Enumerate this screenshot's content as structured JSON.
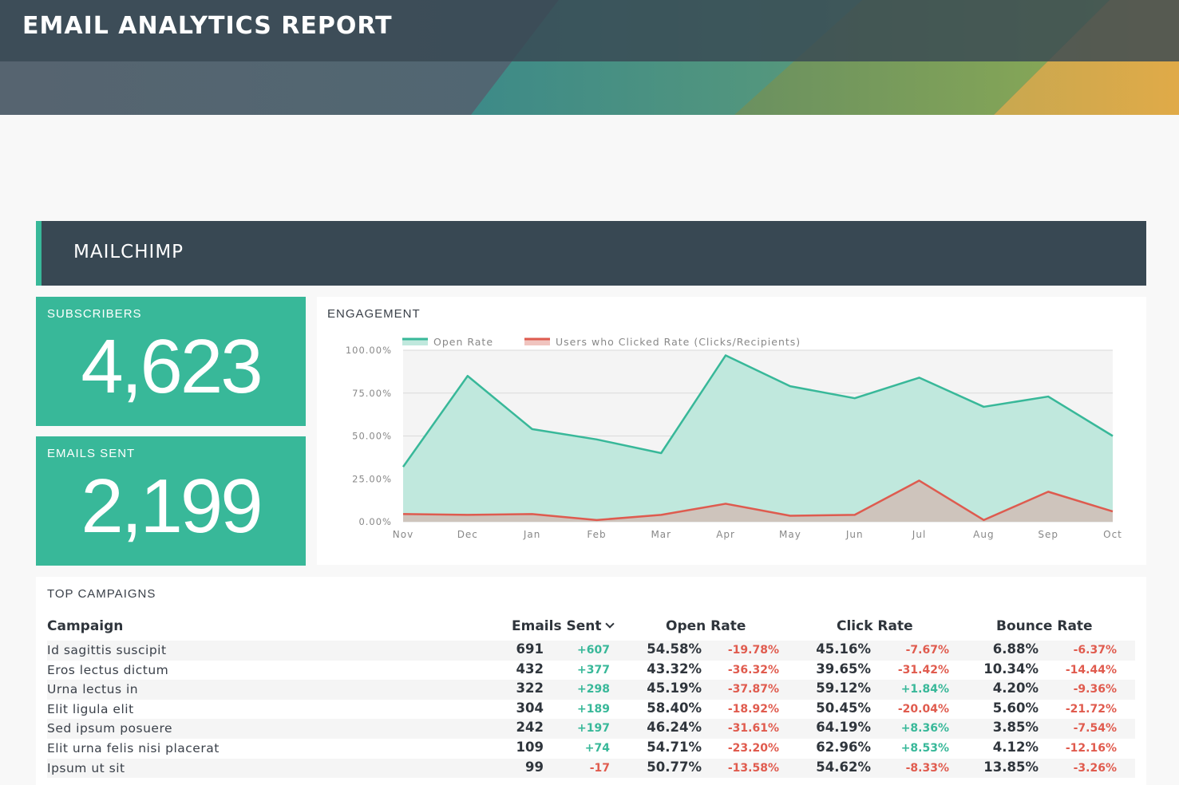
{
  "report": {
    "title": "EMAIL ANALYTICS REPORT"
  },
  "section": {
    "title": "MAILCHIMP"
  },
  "kpis": {
    "subscribers": {
      "label": "SUBSCRIBERS",
      "value": "4,623"
    },
    "emails_sent": {
      "label": "EMAILS SENT",
      "value": "2,199"
    }
  },
  "engagement": {
    "label": "ENGAGEMENT",
    "legend": {
      "open_rate": "Open Rate",
      "clicked_rate": "Users who Clicked Rate (Clicks/Recipients)"
    }
  },
  "chart_data": {
    "type": "area",
    "title": "ENGAGEMENT",
    "x": [
      "Nov",
      "Dec",
      "Jan",
      "Feb",
      "Mar",
      "Apr",
      "May",
      "Jun",
      "Jul",
      "Aug",
      "Sep",
      "Oct"
    ],
    "y_ticks": [
      "0.00%",
      "25.00%",
      "50.00%",
      "75.00%",
      "100.00%"
    ],
    "ylim": [
      0,
      100
    ],
    "grid": true,
    "legend_position": "top-left",
    "series": [
      {
        "name": "Open Rate",
        "color": "#38b899",
        "fill": "#c0e8dd",
        "values": [
          32,
          85,
          54,
          48,
          40,
          97,
          79,
          72,
          84,
          67,
          73,
          50
        ]
      },
      {
        "name": "Users who Clicked Rate (Clicks/Recipients)",
        "color": "#de5b4f",
        "fill": "#cfc0b8",
        "values": [
          4.5,
          4,
          4.5,
          1,
          4,
          10.5,
          3.5,
          4,
          24,
          1,
          17.5,
          6
        ]
      }
    ]
  },
  "campaigns": {
    "label": "TOP CAMPAIGNS",
    "headers": {
      "campaign": "Campaign",
      "emails_sent": "Emails Sent",
      "open_rate": "Open Rate",
      "click_rate": "Click Rate",
      "bounce_rate": "Bounce Rate"
    },
    "rows": [
      {
        "name": "Id sagittis suscipit",
        "sent": "691",
        "sent_delta": "+607",
        "open": "54.58%",
        "open_delta": "-19.78%",
        "click": "45.16%",
        "click_delta": "-7.67%",
        "bounce": "6.88%",
        "bounce_delta": "-6.37%"
      },
      {
        "name": "Eros lectus dictum",
        "sent": "432",
        "sent_delta": "+377",
        "open": "43.32%",
        "open_delta": "-36.32%",
        "click": "39.65%",
        "click_delta": "-31.42%",
        "bounce": "10.34%",
        "bounce_delta": "-14.44%"
      },
      {
        "name": "Urna lectus in",
        "sent": "322",
        "sent_delta": "+298",
        "open": "45.19%",
        "open_delta": "-37.87%",
        "click": "59.12%",
        "click_delta": "+1.84%",
        "bounce": "4.20%",
        "bounce_delta": "-9.36%"
      },
      {
        "name": "Elit ligula elit",
        "sent": "304",
        "sent_delta": "+189",
        "open": "58.40%",
        "open_delta": "-18.92%",
        "click": "50.45%",
        "click_delta": "-20.04%",
        "bounce": "5.60%",
        "bounce_delta": "-21.72%"
      },
      {
        "name": "Sed ipsum posuere",
        "sent": "242",
        "sent_delta": "+197",
        "open": "46.24%",
        "open_delta": "-31.61%",
        "click": "64.19%",
        "click_delta": "+8.36%",
        "bounce": "3.85%",
        "bounce_delta": "-7.54%"
      },
      {
        "name": "Elit urna felis nisi placerat",
        "sent": "109",
        "sent_delta": "+74",
        "open": "54.71%",
        "open_delta": "-23.20%",
        "click": "62.96%",
        "click_delta": "+8.53%",
        "bounce": "4.12%",
        "bounce_delta": "-12.16%"
      },
      {
        "name": "Ipsum ut sit",
        "sent": "99",
        "sent_delta": "-17",
        "open": "50.77%",
        "open_delta": "-13.58%",
        "click": "54.62%",
        "click_delta": "-8.33%",
        "bounce": "13.85%",
        "bounce_delta": "-3.26%"
      }
    ]
  },
  "colors": {
    "accent": "#38b899",
    "negative": "#e05b4e",
    "header_dark": "#384853"
  }
}
